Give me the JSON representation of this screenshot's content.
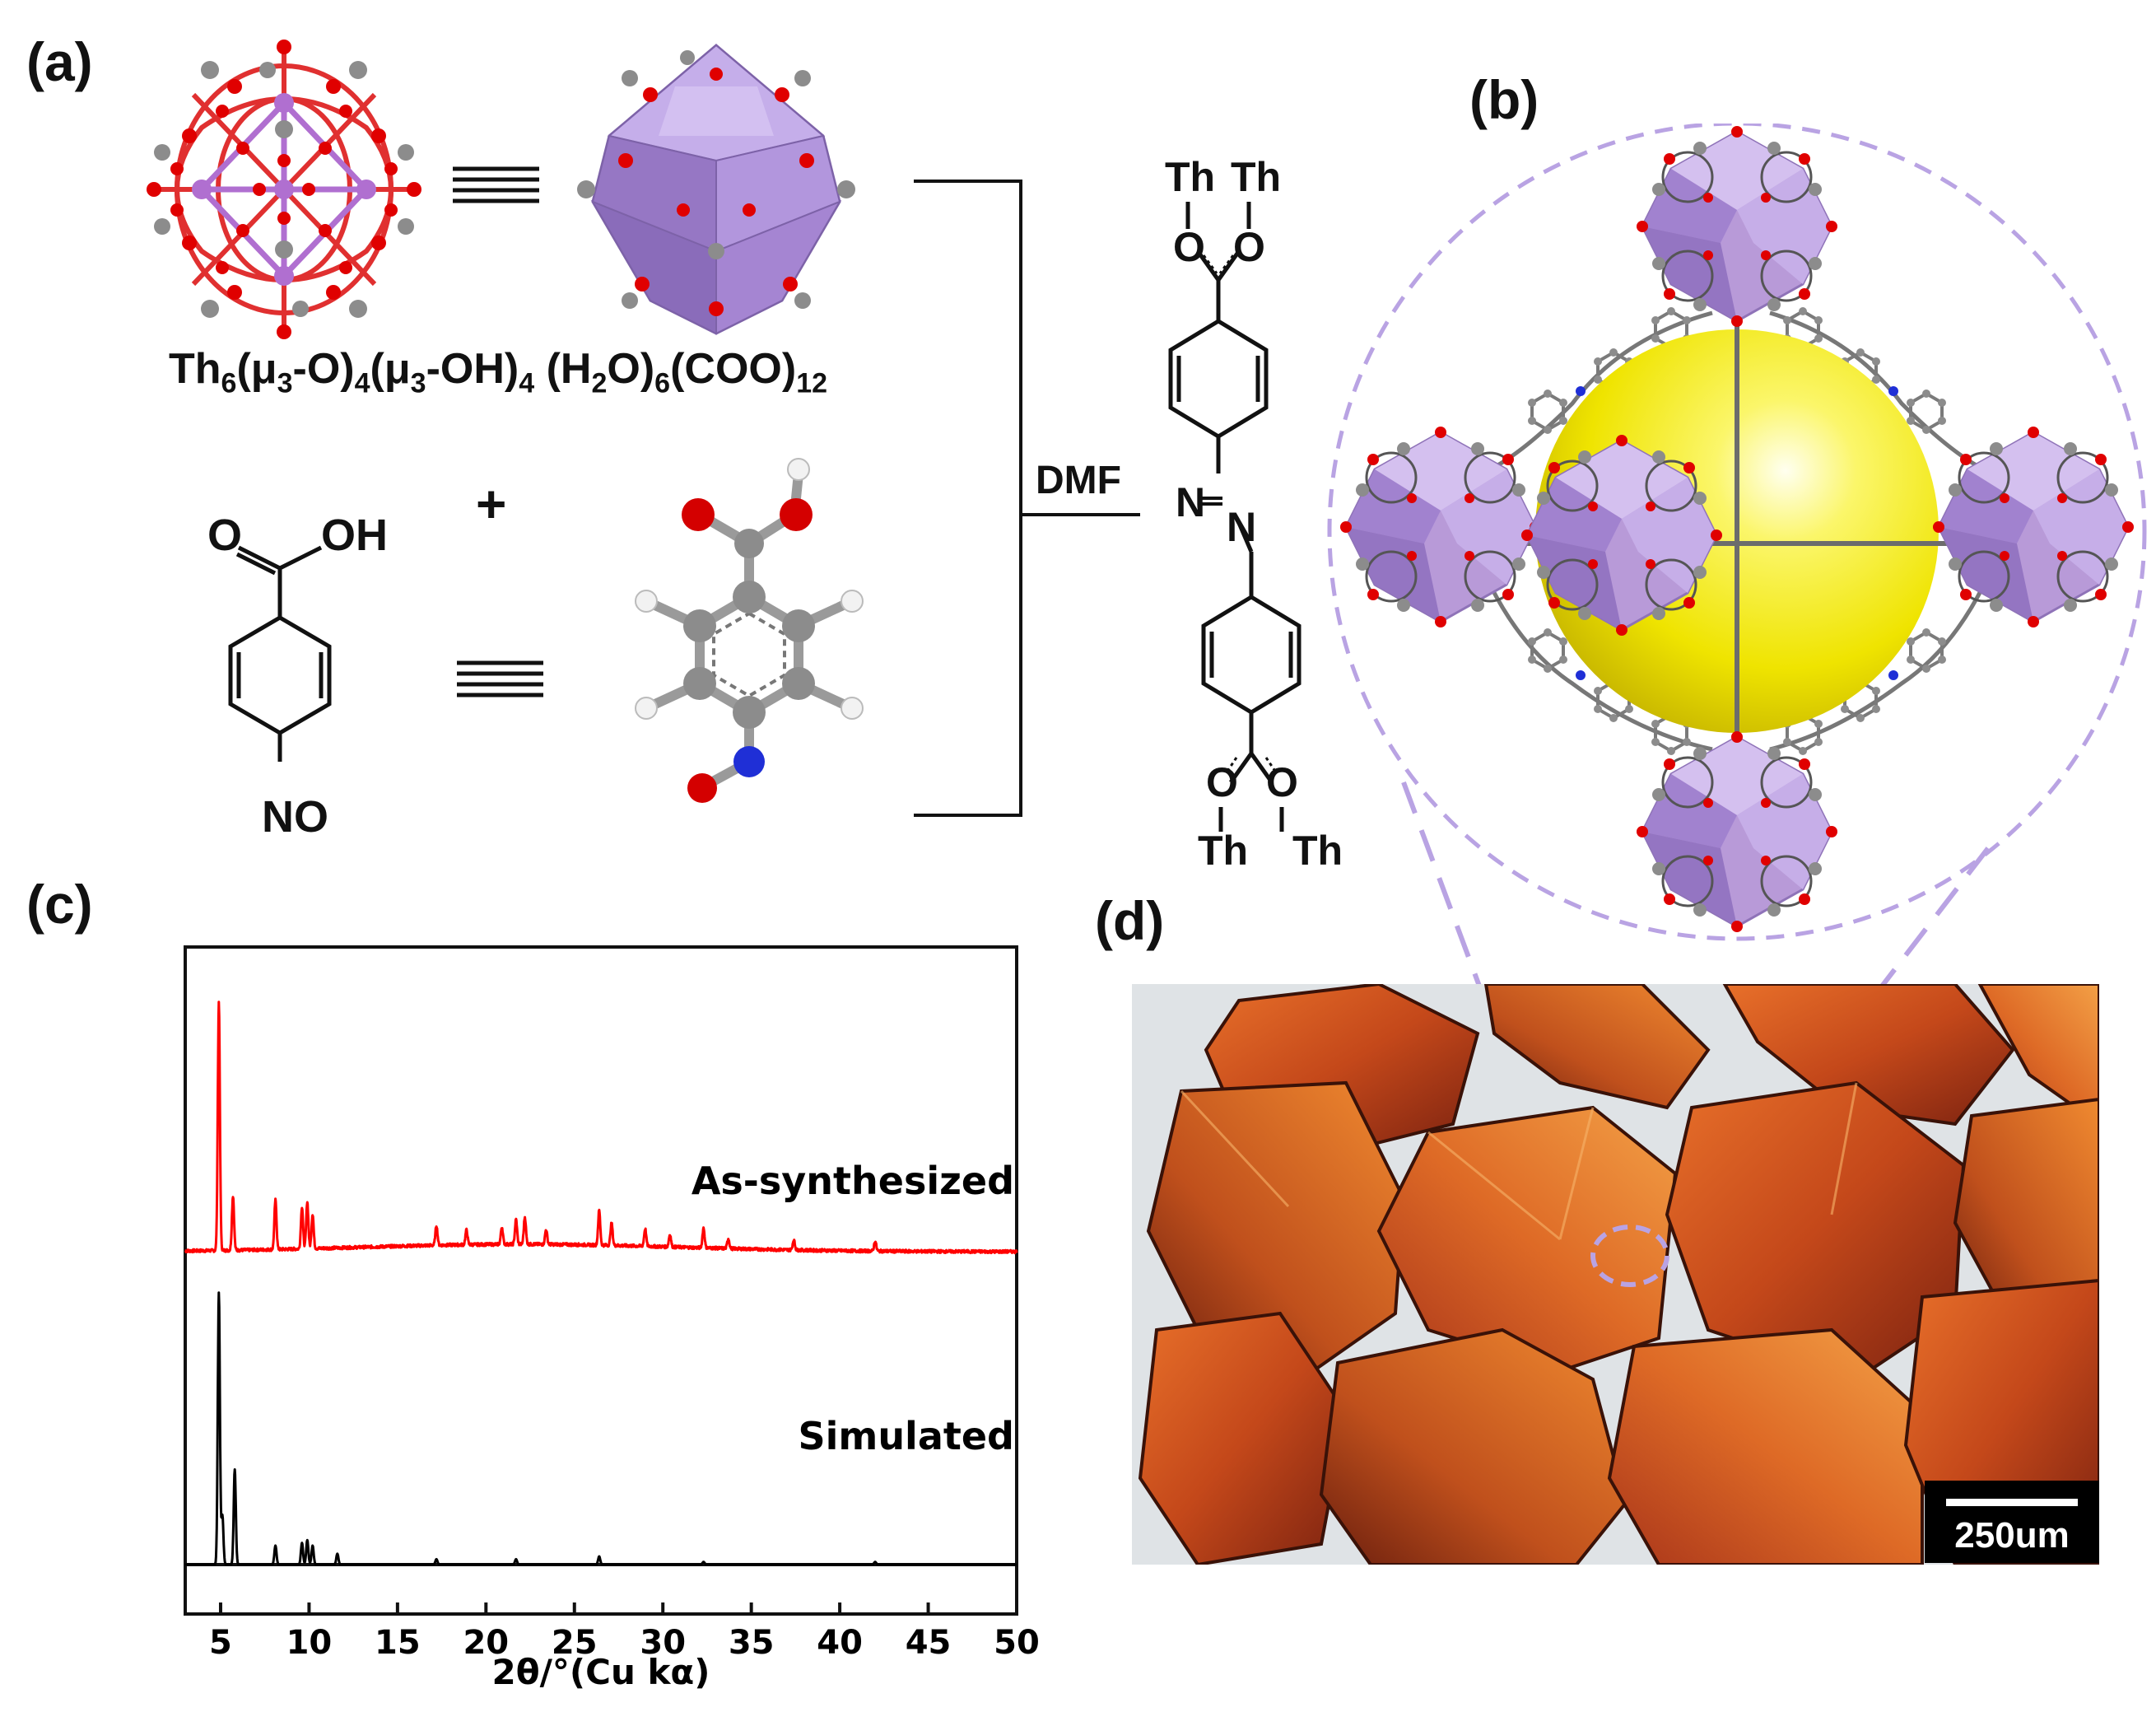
{
  "panels": {
    "a": "(a)",
    "b": "(b)",
    "c": "(c)",
    "d": "(d)"
  },
  "cluster_formula": {
    "p1": "Th",
    "s1": "6",
    "p2": "(μ",
    "s2": "3",
    "p3": "-O)",
    "s3": "4",
    "p4": "(μ",
    "s4": "3",
    "p5": "-OH)",
    "s5": "4",
    "p6": " (H",
    "s6": "2",
    "p7": "O)",
    "s7": "6",
    "p8": "(COO)",
    "s8": "12"
  },
  "ligand": {
    "carboxyl_o": "O",
    "carboxyl_oh": "OH",
    "nitroso": "NO",
    "plus": "+"
  },
  "reaction": {
    "solvent": "DMF"
  },
  "product": {
    "th": "Th",
    "o": "O",
    "n": "N"
  },
  "icons": {
    "cluster_ballstick": "th6-cluster-ball-and-stick-icon",
    "cluster_polyhedron": "th6-cluster-polyhedron-icon",
    "ligand_ballstick": "nitrosobenzoic-acid-ball-and-stick-icon",
    "framework": "mof-framework-icon",
    "crystals": "crystal-micrograph-icon"
  },
  "colors": {
    "oxygen": "#e00000",
    "carbon": "#8c8c8c",
    "nitrogen": "#1f2fd6",
    "thorium_polyhedron": "#b89ad8",
    "cage_sphere": "#f3f000",
    "as_synthesized": "#ff0000",
    "simulated": "#000000",
    "dashed_outline": "#b9a3e3",
    "crystal": "#d2581b"
  },
  "chart_data": {
    "type": "line",
    "xlabel": "2θ/°(Cu kα)",
    "xlim": [
      3,
      50
    ],
    "x_ticks": [
      5,
      10,
      15,
      20,
      25,
      30,
      35,
      40,
      45,
      50
    ],
    "y_ticks_shown": false,
    "series": [
      {
        "name": "As-synthesized",
        "color": "#ff0000",
        "peaks": [
          [
            4.9,
            1.0
          ],
          [
            5.7,
            0.22
          ],
          [
            8.1,
            0.2
          ],
          [
            9.6,
            0.17
          ],
          [
            9.9,
            0.19
          ],
          [
            10.2,
            0.14
          ],
          [
            17.2,
            0.08
          ],
          [
            18.9,
            0.06
          ],
          [
            20.9,
            0.07
          ],
          [
            21.7,
            0.1
          ],
          [
            22.2,
            0.11
          ],
          [
            23.4,
            0.06
          ],
          [
            26.4,
            0.14
          ],
          [
            27.1,
            0.09
          ],
          [
            29.0,
            0.07
          ],
          [
            30.4,
            0.05
          ],
          [
            32.3,
            0.08
          ],
          [
            33.7,
            0.04
          ],
          [
            37.4,
            0.04
          ],
          [
            42.0,
            0.04
          ]
        ]
      },
      {
        "name": "Simulated",
        "color": "#000000",
        "peaks": [
          [
            4.9,
            1.0
          ],
          [
            5.1,
            0.18
          ],
          [
            5.8,
            0.35
          ],
          [
            8.1,
            0.07
          ],
          [
            9.6,
            0.08
          ],
          [
            9.9,
            0.09
          ],
          [
            10.2,
            0.07
          ],
          [
            11.6,
            0.04
          ],
          [
            17.2,
            0.02
          ],
          [
            21.7,
            0.02
          ],
          [
            26.4,
            0.03
          ],
          [
            32.3,
            0.01
          ],
          [
            42.0,
            0.01
          ]
        ]
      }
    ]
  },
  "scale_bar": {
    "label": "250um"
  }
}
